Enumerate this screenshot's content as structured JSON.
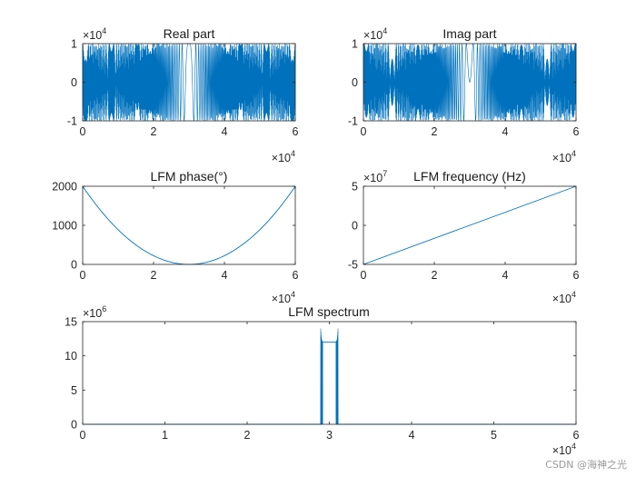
{
  "figure": {
    "watermark": "CSDN @海神之光"
  },
  "chart_data": [
    {
      "id": "real",
      "type": "line",
      "title": "Real part",
      "xlim": [
        0,
        60000
      ],
      "ylim": [
        -10000,
        10000
      ],
      "xticks": [
        0,
        20000,
        40000,
        60000
      ],
      "xtick_labels": [
        "0",
        "2",
        "4",
        "6"
      ],
      "yticks": [
        -10000,
        0,
        10000
      ],
      "ytick_labels": [
        "-1",
        "0",
        "1"
      ],
      "x_exponent": {
        "base": "×10",
        "power": "4"
      },
      "y_exponent": {
        "base": "×10",
        "power": "4"
      },
      "color": "#0072BD",
      "signal": "cos(2π·phase(n)), LFM chirp, amplitude 10000, n = 0..60000"
    },
    {
      "id": "imag",
      "type": "line",
      "title": "Imag part",
      "xlim": [
        0,
        60000
      ],
      "ylim": [
        -10000,
        10000
      ],
      "xticks": [
        0,
        20000,
        40000,
        60000
      ],
      "xtick_labels": [
        "0",
        "2",
        "4",
        "6"
      ],
      "yticks": [
        -10000,
        0,
        10000
      ],
      "ytick_labels": [
        "-1",
        "0",
        "1"
      ],
      "x_exponent": {
        "base": "×10",
        "power": "4"
      },
      "y_exponent": {
        "base": "×10",
        "power": "4"
      },
      "color": "#0072BD",
      "signal": "sin(2π·phase(n)), LFM chirp, amplitude 10000, n = 0..60000"
    },
    {
      "id": "phase",
      "type": "line",
      "title": "LFM phase(°)",
      "xlim": [
        0,
        60000
      ],
      "ylim": [
        0,
        2000
      ],
      "xticks": [
        0,
        20000,
        40000,
        60000
      ],
      "xtick_labels": [
        "0",
        "2",
        "4",
        "6"
      ],
      "yticks": [
        0,
        1000,
        2000
      ],
      "ytick_labels": [
        "0",
        "1000",
        "2000"
      ],
      "x_exponent": {
        "base": "×10",
        "power": "4"
      },
      "color": "#0072BD",
      "x": [
        0,
        10000,
        20000,
        30000,
        40000,
        50000,
        60000
      ],
      "y": [
        2000,
        889,
        222,
        0,
        222,
        889,
        2000
      ]
    },
    {
      "id": "frequency",
      "type": "line",
      "title": "LFM frequency (Hz)",
      "xlim": [
        0,
        60000
      ],
      "ylim": [
        -50000000,
        50000000
      ],
      "xticks": [
        0,
        20000,
        40000,
        60000
      ],
      "xtick_labels": [
        "0",
        "2",
        "4",
        "6"
      ],
      "yticks": [
        -50000000,
        0,
        50000000
      ],
      "ytick_labels": [
        "-5",
        "0",
        "5"
      ],
      "x_exponent": {
        "base": "×10",
        "power": "4"
      },
      "y_exponent": {
        "base": "×10",
        "power": "7"
      },
      "color": "#0072BD",
      "x": [
        0,
        60000
      ],
      "y": [
        -50000000,
        50000000
      ]
    },
    {
      "id": "spectrum",
      "type": "line",
      "title": "LFM spectrum",
      "xlim": [
        0,
        60000
      ],
      "ylim": [
        0,
        15000000
      ],
      "xticks": [
        0,
        10000,
        20000,
        30000,
        40000,
        50000,
        60000
      ],
      "xtick_labels": [
        "0",
        "1",
        "2",
        "3",
        "4",
        "5",
        "6"
      ],
      "yticks": [
        0,
        5000000,
        10000000,
        15000000
      ],
      "ytick_labels": [
        "0",
        "5",
        "10",
        "15"
      ],
      "x_exponent": {
        "base": "×10",
        "power": "4"
      },
      "y_exponent": {
        "base": "×10",
        "power": "6"
      },
      "color": "#0072BD",
      "x": [
        0,
        28900,
        29100,
        29200,
        30000,
        30800,
        30900,
        31100,
        60000
      ],
      "y": [
        0,
        0,
        13500000,
        12000000,
        12000000,
        12000000,
        13500000,
        0,
        0
      ]
    }
  ]
}
